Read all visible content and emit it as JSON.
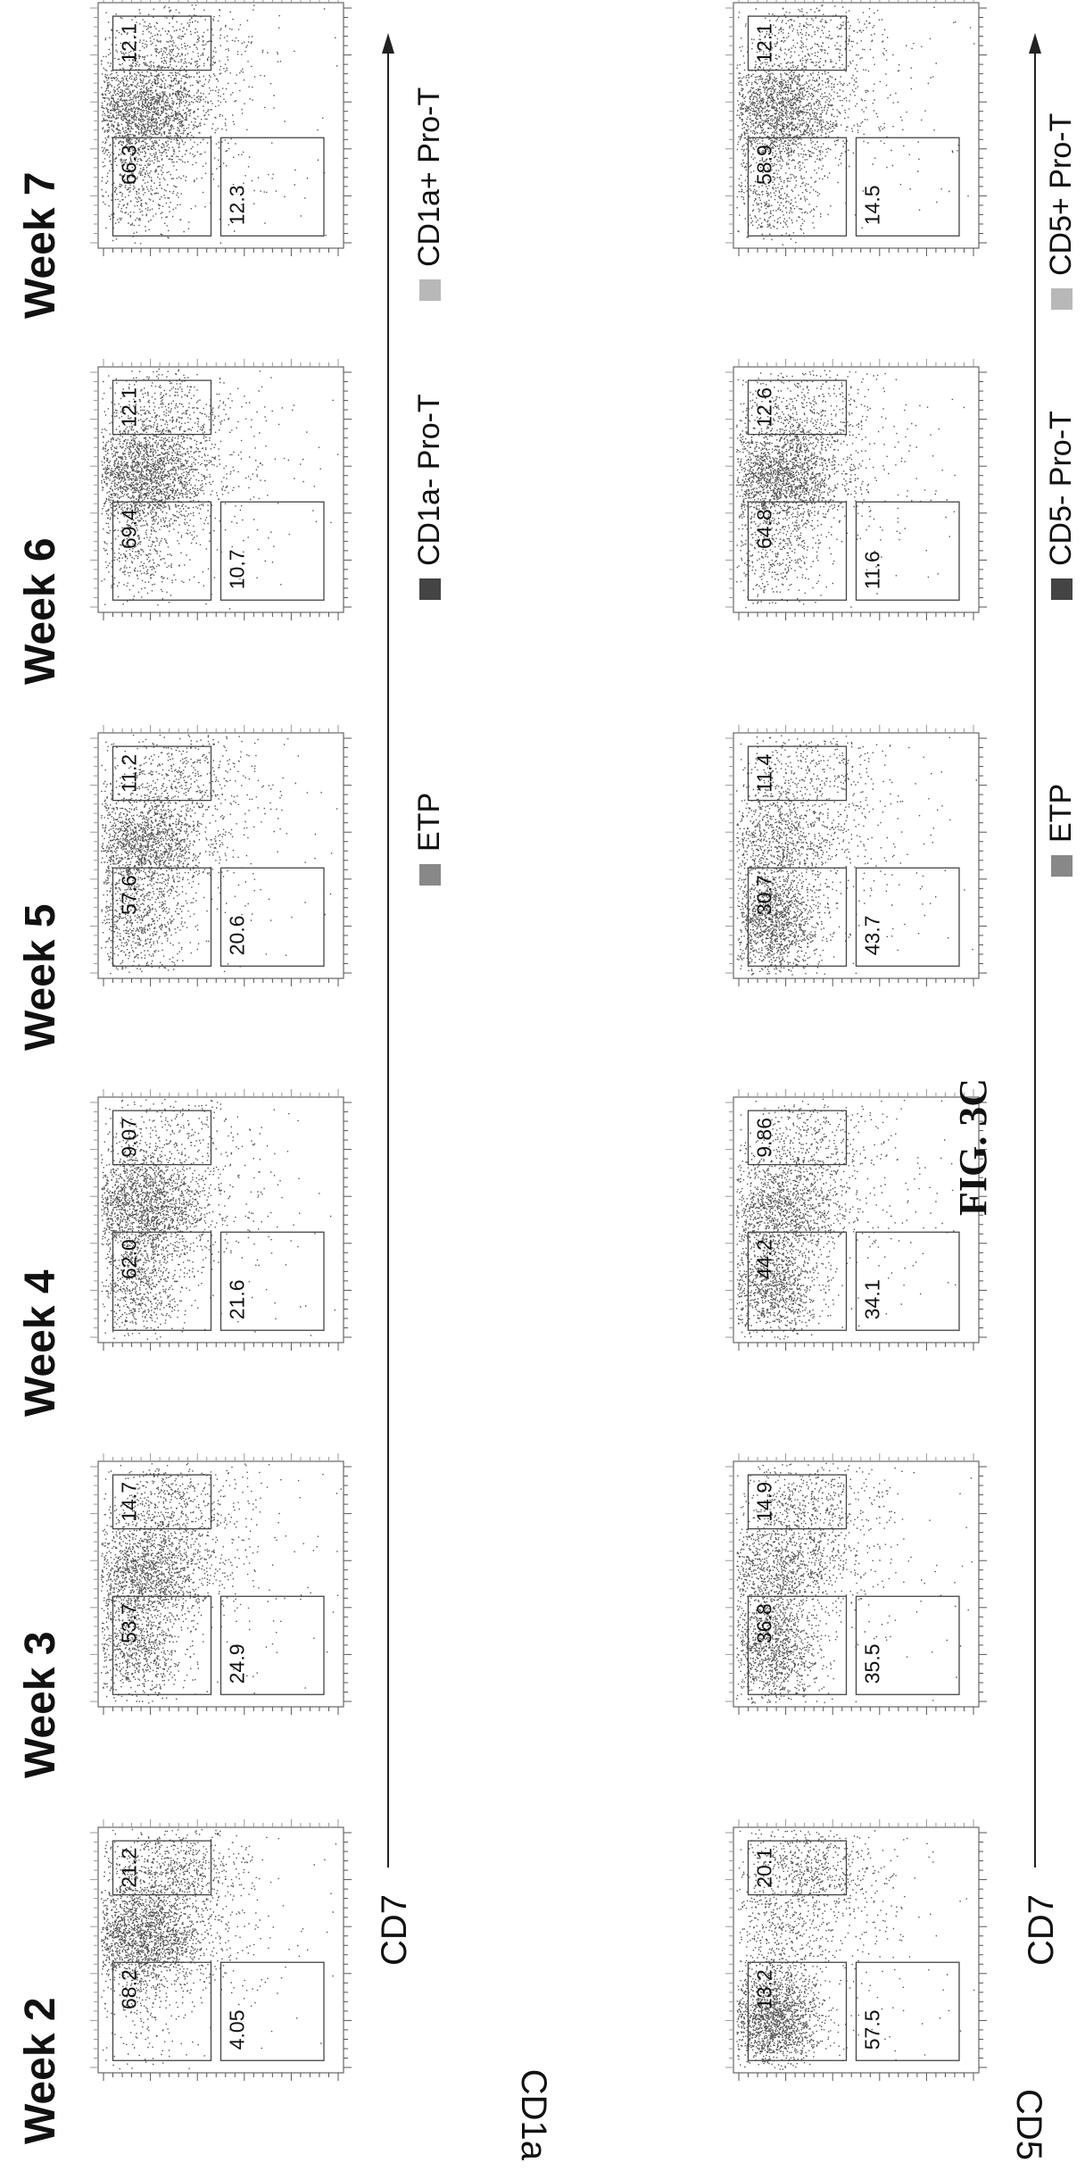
{
  "weeks": [
    "Week 2",
    "Week 3",
    "Week 4",
    "Week 5",
    "Week 6",
    "Week 7"
  ],
  "rows": [
    {
      "y_axis_label": "CD1a",
      "x_axis_label": "CD7",
      "legend": [
        {
          "label": "ETP",
          "color": "#888888"
        },
        {
          "label": "CD1a- Pro-T",
          "color": "#444444"
        },
        {
          "label": "CD1a+ Pro-T",
          "color": "#b8b8b8"
        }
      ],
      "panels": [
        {
          "week": "Week 2",
          "gates": {
            "ETP": "21.2",
            "pos_upper": "4.05",
            "neg_lower": "68.2"
          }
        },
        {
          "week": "Week 3",
          "gates": {
            "ETP": "14.7",
            "pos_upper": "24.9",
            "neg_lower": "53.7"
          }
        },
        {
          "week": "Week 4",
          "gates": {
            "ETP": "9.07",
            "pos_upper": "21.6",
            "neg_lower": "62.0"
          }
        },
        {
          "week": "Week 5",
          "gates": {
            "ETP": "11.2",
            "pos_upper": "20.6",
            "neg_lower": "57.6"
          }
        },
        {
          "week": "Week 6",
          "gates": {
            "ETP": "12.1",
            "pos_upper": "10.7",
            "neg_lower": "69.4"
          }
        },
        {
          "week": "Week 7",
          "gates": {
            "ETP": "12.1",
            "pos_upper": "12.3",
            "neg_lower": "66.3"
          }
        }
      ]
    },
    {
      "y_axis_label": "CD5",
      "x_axis_label": "CD7",
      "legend": [
        {
          "label": "ETP",
          "color": "#888888"
        },
        {
          "label": "CD5- Pro-T",
          "color": "#444444"
        },
        {
          "label": "CD5+ Pro-T",
          "color": "#b8b8b8"
        }
      ],
      "panels": [
        {
          "week": "Week 2",
          "gates": {
            "ETP": "20.1",
            "pos_upper": "57.5",
            "neg_lower": "13.2"
          }
        },
        {
          "week": "Week 3",
          "gates": {
            "ETP": "14.9",
            "pos_upper": "35.5",
            "neg_lower": "36.8"
          }
        },
        {
          "week": "Week 4",
          "gates": {
            "ETP": "9.86",
            "pos_upper": "34.1",
            "neg_lower": "44.2"
          }
        },
        {
          "week": "Week 5",
          "gates": {
            "ETP": "11.4",
            "pos_upper": "43.7",
            "neg_lower": "30.7"
          }
        },
        {
          "week": "Week 6",
          "gates": {
            "ETP": "12.6",
            "pos_upper": "11.6",
            "neg_lower": "64.8"
          }
        },
        {
          "week": "Week 7",
          "gates": {
            "ETP": "12.1",
            "pos_upper": "14.5",
            "neg_lower": "58.9"
          }
        }
      ]
    }
  ],
  "caption": "FIG. 3C"
}
